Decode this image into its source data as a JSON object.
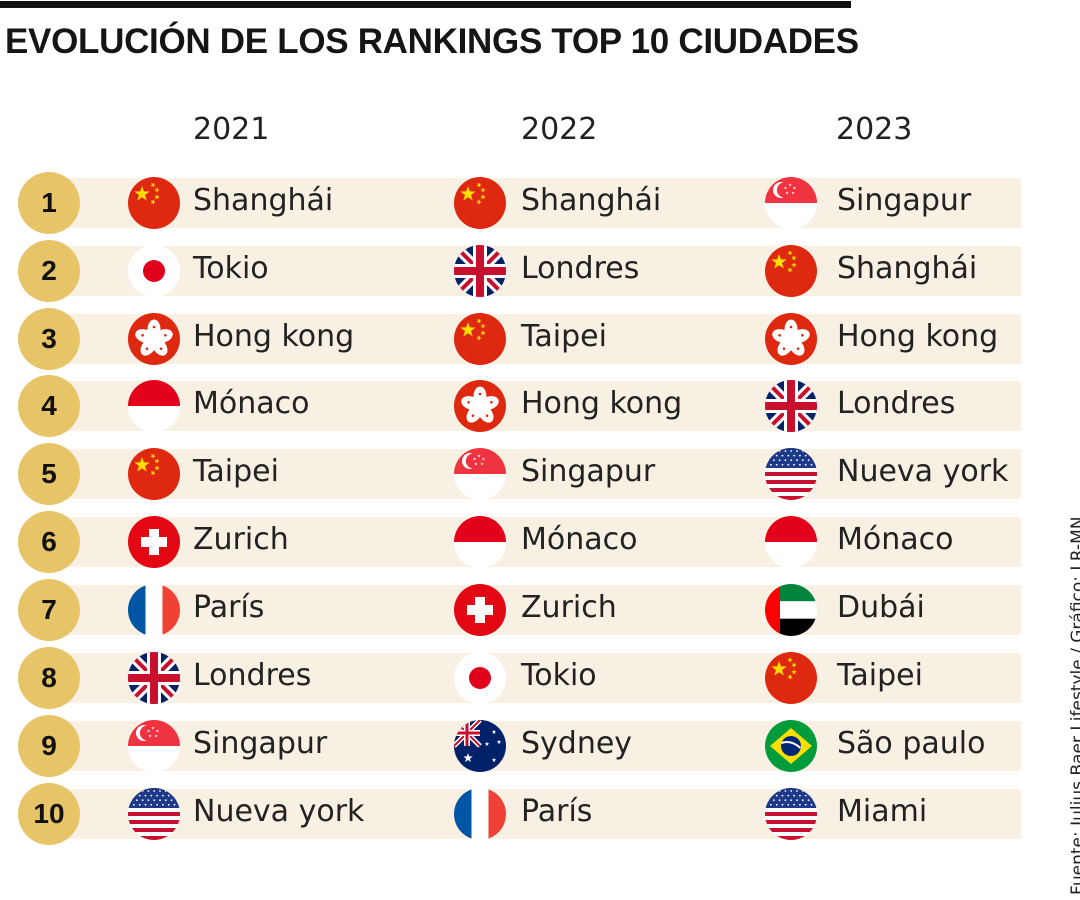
{
  "title": "EVOLUCIÓN DE LOS RANKINGS TOP 10 CIUDADES",
  "source": "Fuente: Julius Baer Lifestyle / Gráfico: LR-MN",
  "years": [
    "2021",
    "2022",
    "2023"
  ],
  "colors": {
    "rank_circle": "#e8c468",
    "row_background": "#f9f0e4",
    "topbar": "#111111"
  },
  "ranks": [
    {
      "rank": "1",
      "cities": [
        {
          "name": "Shanghái",
          "flag": "china-flag-icon"
        },
        {
          "name": "Shanghái",
          "flag": "china-flag-icon"
        },
        {
          "name": "Singapur",
          "flag": "singapore-flag-icon"
        }
      ]
    },
    {
      "rank": "2",
      "cities": [
        {
          "name": "Tokio",
          "flag": "japan-flag-icon"
        },
        {
          "name": "Londres",
          "flag": "uk-flag-icon"
        },
        {
          "name": "Shanghái",
          "flag": "china-flag-icon"
        }
      ]
    },
    {
      "rank": "3",
      "cities": [
        {
          "name": "Hong kong",
          "flag": "hongkong-flag-icon"
        },
        {
          "name": "Taipei",
          "flag": "china-flag-icon"
        },
        {
          "name": "Hong kong",
          "flag": "hongkong-flag-icon"
        }
      ]
    },
    {
      "rank": "4",
      "cities": [
        {
          "name": "Mónaco",
          "flag": "monaco-flag-icon"
        },
        {
          "name": "Hong kong",
          "flag": "hongkong-flag-icon"
        },
        {
          "name": "Londres",
          "flag": "uk-flag-icon"
        }
      ]
    },
    {
      "rank": "5",
      "cities": [
        {
          "name": "Taipei",
          "flag": "china-flag-icon"
        },
        {
          "name": "Singapur",
          "flag": "singapore-flag-icon"
        },
        {
          "name": "Nueva york",
          "flag": "usa-flag-icon"
        }
      ]
    },
    {
      "rank": "6",
      "cities": [
        {
          "name": "Zurich",
          "flag": "swiss-flag-icon"
        },
        {
          "name": "Mónaco",
          "flag": "monaco-flag-icon"
        },
        {
          "name": "Mónaco",
          "flag": "monaco-flag-icon"
        }
      ]
    },
    {
      "rank": "7",
      "cities": [
        {
          "name": "París",
          "flag": "france-flag-icon"
        },
        {
          "name": "Zurich",
          "flag": "swiss-flag-icon"
        },
        {
          "name": "Dubái",
          "flag": "uae-flag-icon"
        }
      ]
    },
    {
      "rank": "8",
      "cities": [
        {
          "name": "Londres",
          "flag": "uk-flag-icon"
        },
        {
          "name": "Tokio",
          "flag": "japan-flag-icon"
        },
        {
          "name": "Taipei",
          "flag": "china-flag-icon"
        }
      ]
    },
    {
      "rank": "9",
      "cities": [
        {
          "name": "Singapur",
          "flag": "singapore-flag-icon"
        },
        {
          "name": "Sydney",
          "flag": "australia-flag-icon"
        },
        {
          "name": "São paulo",
          "flag": "brazil-flag-icon"
        }
      ]
    },
    {
      "rank": "10",
      "cities": [
        {
          "name": "Nueva york",
          "flag": "usa-flag-icon"
        },
        {
          "name": "París",
          "flag": "france-flag-icon"
        },
        {
          "name": "Miami",
          "flag": "usa-flag-icon"
        }
      ]
    }
  ]
}
